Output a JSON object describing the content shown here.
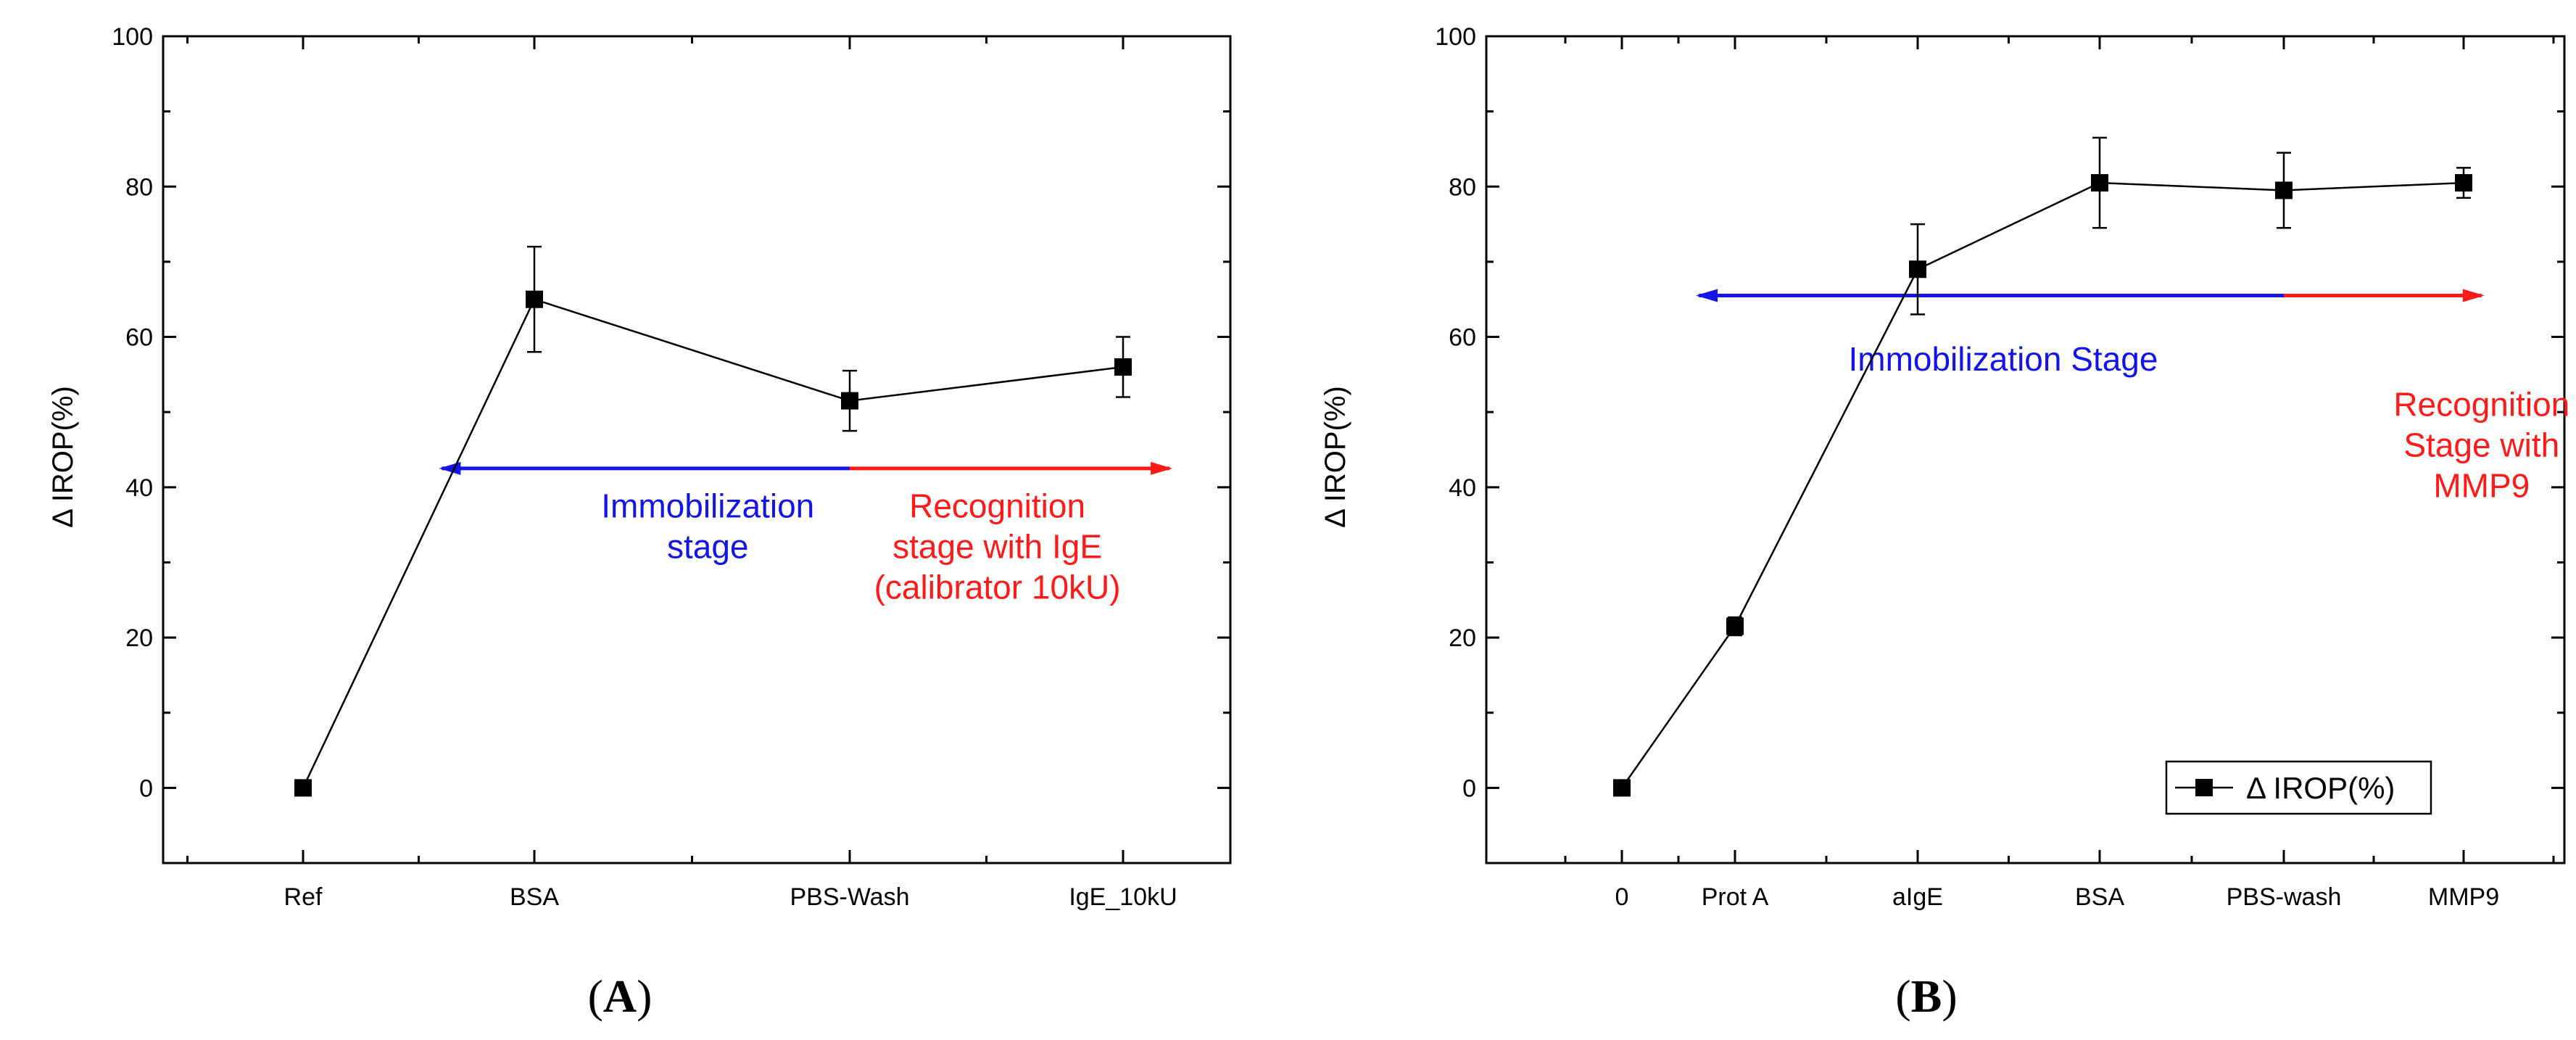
{
  "colors": {
    "blue": "#1414e6",
    "red": "#ff1a1a",
    "line": "#000000"
  },
  "chart_data": [
    {
      "type": "line",
      "panel_label": "(A)",
      "panel_label_parts": [
        "(",
        "A",
        ")"
      ],
      "ylabel": "Δ IROP(%)",
      "xlabel": "",
      "ylim": [
        -10,
        100
      ],
      "yticks": [
        "0",
        "20",
        "40",
        "60",
        "80",
        "100"
      ],
      "categories": [
        "Ref",
        "BSA",
        "PBS-Wash",
        "IgE_10kU"
      ],
      "series": [
        {
          "name": "Δ IROP(%)",
          "values": [
            0,
            65,
            51.5,
            56
          ],
          "errors": [
            0,
            7,
            4,
            4
          ]
        }
      ],
      "annotations": [
        {
          "lines": [
            "Immobilization",
            "stage"
          ],
          "color": "blue",
          "arrow": [
            0.6,
            2.0
          ],
          "arrow_y": 42.5,
          "text_x": 1.55,
          "text_y": 36
        },
        {
          "lines": [
            "Recognition",
            "stage with IgE",
            "(calibrator 10kU)"
          ],
          "color": "red",
          "arrow": [
            2.0,
            3.17
          ],
          "arrow_y": 42.5,
          "text_x": 2.54,
          "text_y": 36
        }
      ],
      "legend": null
    },
    {
      "type": "line",
      "panel_label": "(B)",
      "panel_label_parts": [
        "(",
        "B",
        ")"
      ],
      "ylabel": "Δ IROP(%)",
      "xlabel": "",
      "ylim": [
        -10,
        100
      ],
      "yticks": [
        "0",
        "20",
        "40",
        "60",
        "80",
        "100"
      ],
      "categories": [
        "0",
        "Prot A",
        "aIgE",
        "BSA",
        "PBS-wash",
        "MMP9"
      ],
      "series": [
        {
          "name": "Δ IROP(%)",
          "values": [
            0,
            21.5,
            69,
            80.5,
            79.5,
            80.5
          ],
          "errors": [
            0,
            1.2,
            6,
            6,
            5,
            2
          ]
        }
      ],
      "annotations": [
        {
          "lines": [
            "Immobilization Stage"
          ],
          "color": "blue",
          "arrow": [
            0.68,
            4.0
          ],
          "arrow_y": 65.5,
          "text_x": 2.47,
          "text_y": 55.5
        },
        {
          "lines": [
            "Recognition",
            "Stage with",
            "MMP9"
          ],
          "color": "red",
          "arrow": [
            4.0,
            5.1
          ],
          "arrow_y": 65.5,
          "text_x": 5.1,
          "text_y": 49.5
        }
      ],
      "legend": {
        "label": "Δ IROP(%)",
        "position": "bottom-right"
      }
    }
  ]
}
